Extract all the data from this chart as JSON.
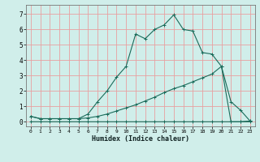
{
  "xlabel": "Humidex (Indice chaleur)",
  "bg_color": "#d0eeea",
  "grid_color": "#e8a0a0",
  "line_color": "#1a6b5a",
  "xlim": [
    -0.5,
    23.5
  ],
  "ylim": [
    -0.3,
    7.6
  ],
  "xticks": [
    0,
    1,
    2,
    3,
    4,
    5,
    6,
    7,
    8,
    9,
    10,
    11,
    12,
    13,
    14,
    15,
    16,
    17,
    18,
    19,
    20,
    21,
    22,
    23
  ],
  "yticks": [
    0,
    1,
    2,
    3,
    4,
    5,
    6,
    7
  ],
  "line1_x": [
    0,
    1,
    2,
    3,
    4,
    5,
    6,
    7,
    8,
    9,
    10,
    11,
    12,
    13,
    14,
    15,
    16,
    17,
    18,
    19,
    20,
    21,
    22,
    23
  ],
  "line1_y": [
    0.35,
    0.2,
    0.2,
    0.2,
    0.2,
    0.2,
    0.5,
    1.3,
    2.0,
    2.9,
    3.6,
    5.7,
    5.4,
    6.0,
    6.3,
    6.95,
    6.0,
    5.9,
    4.5,
    4.4,
    3.6,
    1.3,
    0.75,
    0.05
  ],
  "line2_x": [
    0,
    1,
    2,
    3,
    4,
    5,
    6,
    7,
    8,
    9,
    10,
    11,
    12,
    13,
    14,
    15,
    16,
    17,
    18,
    19,
    20,
    21,
    22,
    23
  ],
  "line2_y": [
    0.35,
    0.2,
    0.2,
    0.2,
    0.2,
    0.2,
    0.25,
    0.35,
    0.5,
    0.7,
    0.9,
    1.1,
    1.35,
    1.6,
    1.9,
    2.15,
    2.35,
    2.6,
    2.85,
    3.1,
    3.6,
    0.0,
    0.0,
    0.0
  ],
  "line3_x": [
    0,
    1,
    2,
    3,
    4,
    5,
    6,
    7,
    8,
    9,
    10,
    11,
    12,
    13,
    14,
    15,
    16,
    17,
    18,
    19,
    20,
    21,
    22,
    23
  ],
  "line3_y": [
    0.0,
    0.0,
    0.0,
    0.0,
    0.0,
    0.0,
    0.0,
    0.0,
    0.0,
    0.0,
    0.0,
    0.0,
    0.0,
    0.0,
    0.0,
    0.0,
    0.0,
    0.0,
    0.0,
    0.0,
    0.0,
    0.0,
    0.0,
    0.05
  ]
}
